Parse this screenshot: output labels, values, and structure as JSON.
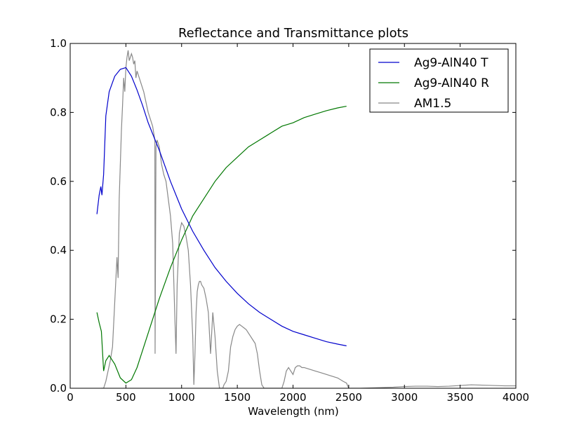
{
  "chart_data": {
    "type": "line",
    "title": "Reflectance and Transmittance plots",
    "xlabel": "Wavelength (nm)",
    "ylabel": "",
    "xlim": [
      0,
      4000
    ],
    "ylim": [
      0.0,
      1.0
    ],
    "x_ticks": [
      0,
      500,
      1000,
      1500,
      2000,
      2500,
      3000,
      3500,
      4000
    ],
    "x_tick_labels": [
      "0",
      "500",
      "1000",
      "1500",
      "2000",
      "2500",
      "3000",
      "3500",
      "4000"
    ],
    "y_ticks": [
      0.0,
      0.2,
      0.4,
      0.6,
      0.8,
      1.0
    ],
    "y_tick_labels": [
      "0.0",
      "0.2",
      "0.4",
      "0.6",
      "0.8",
      "1.0"
    ],
    "grid": false,
    "legend_position": "top-right",
    "series": [
      {
        "name": "Ag9-AlN40 T",
        "color": "#0000cc",
        "x": [
          240,
          260,
          275,
          285,
          300,
          320,
          350,
          400,
          450,
          500,
          550,
          600,
          650,
          700,
          750,
          800,
          900,
          1000,
          1100,
          1200,
          1300,
          1400,
          1500,
          1600,
          1700,
          1800,
          1900,
          2000,
          2100,
          2200,
          2300,
          2400,
          2480
        ],
        "values": [
          0.505,
          0.56,
          0.585,
          0.56,
          0.62,
          0.79,
          0.86,
          0.905,
          0.925,
          0.93,
          0.905,
          0.865,
          0.82,
          0.77,
          0.73,
          0.69,
          0.6,
          0.52,
          0.455,
          0.4,
          0.35,
          0.31,
          0.275,
          0.245,
          0.22,
          0.2,
          0.18,
          0.165,
          0.155,
          0.145,
          0.135,
          0.128,
          0.123
        ]
      },
      {
        "name": "Ag9-AlN40 R",
        "color": "#007700",
        "x": [
          240,
          260,
          280,
          300,
          320,
          350,
          400,
          450,
          500,
          550,
          600,
          650,
          700,
          750,
          800,
          900,
          1000,
          1100,
          1200,
          1300,
          1400,
          1500,
          1600,
          1700,
          1800,
          1900,
          2000,
          2100,
          2200,
          2300,
          2400,
          2480
        ],
        "values": [
          0.22,
          0.19,
          0.165,
          0.05,
          0.08,
          0.095,
          0.07,
          0.03,
          0.015,
          0.025,
          0.06,
          0.11,
          0.16,
          0.21,
          0.26,
          0.35,
          0.43,
          0.5,
          0.55,
          0.6,
          0.64,
          0.67,
          0.7,
          0.72,
          0.74,
          0.76,
          0.77,
          0.785,
          0.795,
          0.805,
          0.813,
          0.818
        ]
      },
      {
        "name": "AM1.5",
        "color": "#888888",
        "x": [
          280,
          300,
          320,
          340,
          360,
          380,
          400,
          420,
          430,
          440,
          450,
          460,
          470,
          480,
          490,
          500,
          510,
          520,
          530,
          540,
          550,
          560,
          570,
          580,
          590,
          600,
          620,
          640,
          660,
          680,
          700,
          720,
          740,
          760,
          762,
          770,
          780,
          800,
          820,
          840,
          860,
          880,
          900,
          920,
          940,
          950,
          960,
          980,
          1000,
          1020,
          1040,
          1060,
          1080,
          1100,
          1110,
          1120,
          1130,
          1140,
          1150,
          1160,
          1170,
          1180,
          1200,
          1220,
          1240,
          1260,
          1280,
          1300,
          1320,
          1340,
          1350,
          1360,
          1370,
          1380,
          1400,
          1420,
          1440,
          1460,
          1480,
          1500,
          1520,
          1540,
          1560,
          1580,
          1600,
          1620,
          1640,
          1660,
          1680,
          1700,
          1720,
          1740,
          1760,
          1780,
          1800,
          1820,
          1840,
          1860,
          1880,
          1900,
          1920,
          1940,
          1960,
          1980,
          2000,
          2020,
          2040,
          2060,
          2080,
          2100,
          2150,
          2200,
          2250,
          2300,
          2350,
          2400,
          2450,
          2480,
          2500,
          2600,
          2700,
          2800,
          2900,
          3000,
          3100,
          3200,
          3300,
          3400,
          3500,
          3600,
          3700,
          3800,
          3900,
          4000
        ],
        "values": [
          0.0,
          0.0,
          0.02,
          0.05,
          0.08,
          0.12,
          0.25,
          0.38,
          0.32,
          0.55,
          0.65,
          0.75,
          0.82,
          0.9,
          0.86,
          0.93,
          0.96,
          0.98,
          0.95,
          0.96,
          0.97,
          0.96,
          0.94,
          0.95,
          0.9,
          0.92,
          0.9,
          0.88,
          0.86,
          0.83,
          0.8,
          0.78,
          0.76,
          0.72,
          0.1,
          0.7,
          0.72,
          0.7,
          0.65,
          0.62,
          0.6,
          0.55,
          0.5,
          0.42,
          0.2,
          0.1,
          0.3,
          0.45,
          0.48,
          0.47,
          0.44,
          0.4,
          0.3,
          0.15,
          0.01,
          0.1,
          0.22,
          0.28,
          0.3,
          0.31,
          0.31,
          0.3,
          0.29,
          0.26,
          0.22,
          0.1,
          0.22,
          0.15,
          0.05,
          0.0,
          0.0,
          0.0,
          0.0,
          0.01,
          0.02,
          0.05,
          0.12,
          0.15,
          0.17,
          0.18,
          0.185,
          0.18,
          0.175,
          0.17,
          0.16,
          0.15,
          0.14,
          0.13,
          0.1,
          0.05,
          0.01,
          0.0,
          0.0,
          0.0,
          0.0,
          0.0,
          0.0,
          0.0,
          0.0,
          0.0,
          0.02,
          0.05,
          0.06,
          0.05,
          0.04,
          0.06,
          0.065,
          0.065,
          0.06,
          0.06,
          0.055,
          0.05,
          0.045,
          0.04,
          0.035,
          0.03,
          0.02,
          0.015,
          0.0,
          0.0,
          0.001,
          0.002,
          0.003,
          0.005,
          0.006,
          0.006,
          0.005,
          0.006,
          0.008,
          0.01,
          0.009,
          0.008,
          0.007,
          0.007
        ]
      }
    ]
  }
}
